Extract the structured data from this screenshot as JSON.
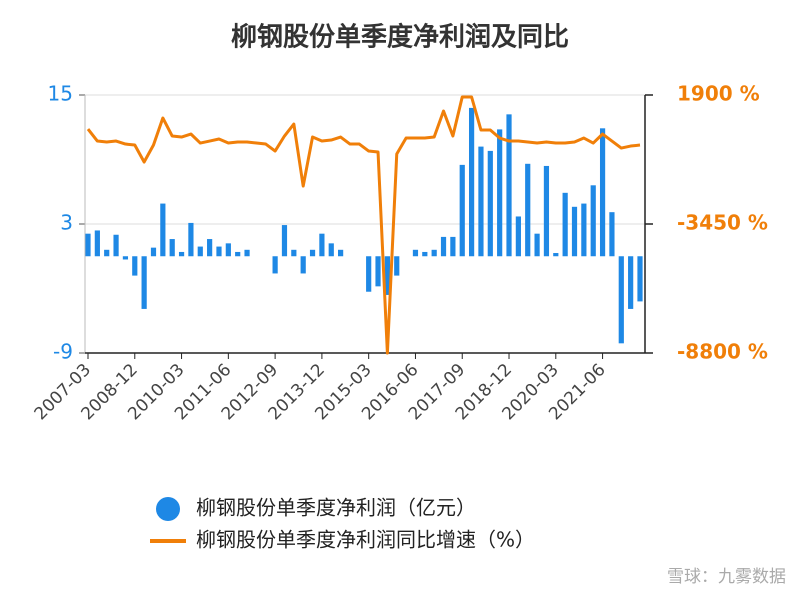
{
  "chart_data": {
    "type": "bar_line",
    "title": "柳钢股份单季度净利润及同比",
    "categories": [
      "2007-03",
      null,
      null,
      null,
      null,
      "2008-12",
      null,
      null,
      null,
      null,
      "2010-03",
      null,
      null,
      null,
      null,
      "2011-06",
      null,
      null,
      null,
      null,
      "2012-09",
      null,
      null,
      null,
      null,
      "2013-12",
      null,
      null,
      null,
      null,
      "2015-03",
      null,
      null,
      null,
      null,
      "2016-06",
      null,
      null,
      null,
      null,
      "2017-09",
      null,
      null,
      null,
      null,
      "2018-12",
      null,
      null,
      null,
      null,
      "2020-03",
      null,
      null,
      null,
      null,
      "2021-06",
      null,
      null,
      null,
      null
    ],
    "series": [
      {
        "name": "柳钢股份单季度净利润（亿元）",
        "type": "bar",
        "color": "#1e88e5",
        "axis": "y",
        "values": [
          2.1,
          2.4,
          0.6,
          2.0,
          -0.3,
          -1.8,
          -4.9,
          0.8,
          4.9,
          1.6,
          0.4,
          3.1,
          0.9,
          1.6,
          0.9,
          1.2,
          0.4,
          0.6,
          0,
          0,
          -1.6,
          2.9,
          0.6,
          -1.6,
          0.6,
          2.1,
          1.2,
          0.6,
          0,
          0,
          -3.3,
          -2.8,
          -3.6,
          -1.8,
          0,
          0.6,
          0.4,
          0.6,
          1.8,
          1.8,
          8.5,
          13.8,
          10.2,
          9.8,
          11.8,
          13.2,
          3.7,
          8.6,
          2.1,
          8.4,
          0.3,
          5.9,
          4.6,
          4.9,
          6.6,
          11.9,
          4.1,
          -8.1,
          -4.9,
          -4.2
        ]
      },
      {
        "name": "柳钢股份单季度净利润同比增速（%）",
        "type": "line",
        "color": "#f07f09",
        "axis": "y2",
        "values": [
          489,
          -9,
          -50,
          -9,
          -134,
          -175,
          -880,
          -175,
          946,
          199,
          157,
          282,
          -92,
          -9,
          74,
          -92,
          -50,
          -50,
          -92,
          -134,
          -424,
          199,
          696,
          -1877,
          157,
          -9,
          33,
          157,
          -134,
          -134,
          -424,
          -466,
          -8800,
          -549,
          116,
          116,
          116,
          157,
          1236,
          199,
          1817,
          1817,
          448,
          448,
          116,
          -9,
          -9,
          -50,
          -92,
          -50,
          -92,
          -92,
          -50,
          116,
          -92,
          282,
          -9,
          -300,
          -217,
          -175
        ]
      }
    ],
    "ylim": [
      -9,
      15
    ],
    "yticks": [
      -9,
      3,
      15
    ],
    "y2lim": [
      -8800,
      1900
    ],
    "y2ticks": [
      {
        "value": -8800,
        "label": "-8800 %"
      },
      {
        "value": -3450,
        "label": "-3450 %"
      },
      {
        "value": 1900,
        "label": "1900 %"
      }
    ],
    "grid": true,
    "legend": "bottom",
    "watermark": "雪球：九雾数据"
  }
}
